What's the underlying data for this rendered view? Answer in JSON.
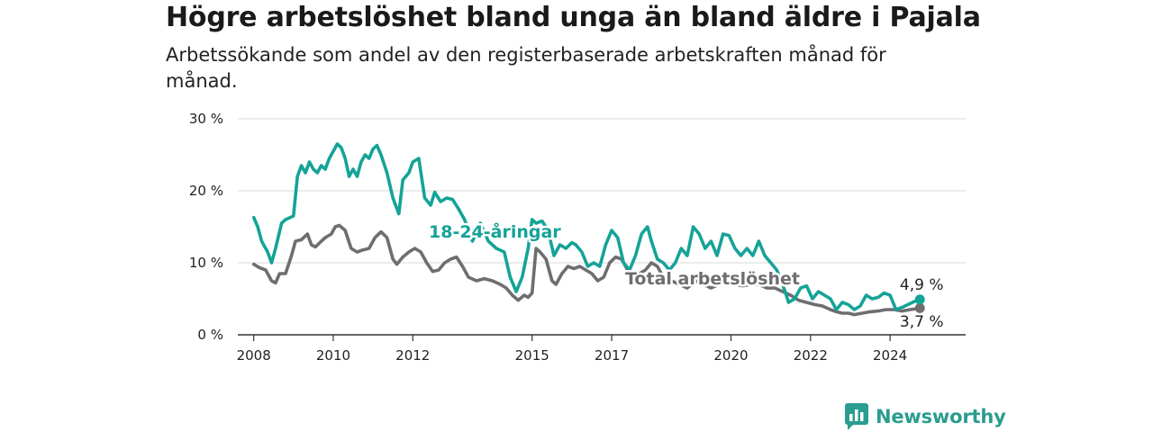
{
  "title": "Högre arbetslöshet bland unga än bland äldre i Pajala",
  "subtitle": "Arbetssökande som andel av den registerbaserade arbetskraften månad för månad.",
  "brand": {
    "name": "Newsworthy",
    "icon": "newsworthy-logo-icon",
    "color": "#2a9d8f"
  },
  "chart_data": {
    "type": "line",
    "y_ticks": [
      0,
      10,
      20,
      30
    ],
    "y_tick_labels": [
      "0 %",
      "10 %",
      "20 %",
      "30 %"
    ],
    "ylim": [
      0,
      30
    ],
    "x_ticks": [
      2008,
      2010,
      2012,
      2015,
      2017,
      2020,
      2022,
      2024
    ],
    "x_tick_labels": [
      "2008",
      "2010",
      "2012",
      "2015",
      "2017",
      "2020",
      "2022",
      "2024"
    ],
    "xlim": [
      2007.6,
      2025.9
    ],
    "grid": true,
    "series": [
      {
        "name": "18-24-åringar",
        "color": "#15a398",
        "end_label": "4,9 %",
        "x": [
          2008.0,
          2008.1,
          2008.2,
          2008.35,
          2008.45,
          2008.55,
          2008.7,
          2008.8,
          2009.0,
          2009.1,
          2009.2,
          2009.3,
          2009.4,
          2009.5,
          2009.6,
          2009.7,
          2009.8,
          2009.9,
          2010.0,
          2010.1,
          2010.2,
          2010.3,
          2010.4,
          2010.5,
          2010.6,
          2010.7,
          2010.8,
          2010.9,
          2011.0,
          2011.1,
          2011.2,
          2011.35,
          2011.5,
          2011.65,
          2011.75,
          2011.9,
          2012.0,
          2012.15,
          2012.3,
          2012.45,
          2012.55,
          2012.7,
          2012.85,
          2013.0,
          2013.15,
          2013.3,
          2013.5,
          2013.7,
          2013.9,
          2014.1,
          2014.3,
          2014.45,
          2014.6,
          2014.75,
          2014.9,
          2015.0,
          2015.1,
          2015.25,
          2015.4,
          2015.55,
          2015.7,
          2015.85,
          2016.0,
          2016.1,
          2016.25,
          2016.4,
          2016.55,
          2016.7,
          2016.85,
          2017.0,
          2017.15,
          2017.3,
          2017.45,
          2017.6,
          2017.75,
          2017.9,
          2018.0,
          2018.15,
          2018.3,
          2018.45,
          2018.6,
          2018.75,
          2018.9,
          2019.05,
          2019.2,
          2019.35,
          2019.5,
          2019.65,
          2019.8,
          2019.95,
          2020.1,
          2020.25,
          2020.4,
          2020.55,
          2020.7,
          2020.85,
          2021.0,
          2021.15,
          2021.3,
          2021.45,
          2021.6,
          2021.75,
          2021.9,
          2022.05,
          2022.2,
          2022.35,
          2022.5,
          2022.65,
          2022.8,
          2022.95,
          2023.1,
          2023.25,
          2023.4,
          2023.55,
          2023.7,
          2023.85,
          2024.0,
          2024.15,
          2024.3,
          2024.45,
          2024.6,
          2024.75
        ],
        "values": [
          16.3,
          15.0,
          13.0,
          11.5,
          10.0,
          12.0,
          15.5,
          16.0,
          16.5,
          22.0,
          23.5,
          22.5,
          24.0,
          23.0,
          22.5,
          23.5,
          23.0,
          24.5,
          25.5,
          26.5,
          26.0,
          24.5,
          22.0,
          23.0,
          22.0,
          24.0,
          25.0,
          24.5,
          25.8,
          26.3,
          25.0,
          22.5,
          19.0,
          16.8,
          21.5,
          22.5,
          24.0,
          24.5,
          19.0,
          18.0,
          19.8,
          18.5,
          19.0,
          18.8,
          17.5,
          16.0,
          13.0,
          15.5,
          13.0,
          12.0,
          11.5,
          8.0,
          6.0,
          8.0,
          12.0,
          16.0,
          15.5,
          15.8,
          14.5,
          11.0,
          12.5,
          12.0,
          12.8,
          12.5,
          11.5,
          9.5,
          10.0,
          9.5,
          12.5,
          14.5,
          13.5,
          10.0,
          9.0,
          11.0,
          14.0,
          15.0,
          13.0,
          10.5,
          10.0,
          9.0,
          10.0,
          12.0,
          11.0,
          15.0,
          14.0,
          12.0,
          13.0,
          11.0,
          14.0,
          13.8,
          12.0,
          11.0,
          12.0,
          11.0,
          13.0,
          11.0,
          10.0,
          9.0,
          7.0,
          4.5,
          5.0,
          6.5,
          6.8,
          5.0,
          6.0,
          5.5,
          5.0,
          3.5,
          4.5,
          4.2,
          3.5,
          4.0,
          5.5,
          5.0,
          5.2,
          5.8,
          5.5,
          3.5,
          3.8,
          4.2,
          4.6,
          4.9
        ]
      },
      {
        "name": "Total arbetslöshet",
        "color": "#6e6e70",
        "end_label": "3,7 %",
        "x": [
          2008.0,
          2008.15,
          2008.3,
          2008.45,
          2008.55,
          2008.65,
          2008.8,
          2008.95,
          2009.05,
          2009.2,
          2009.35,
          2009.45,
          2009.55,
          2009.7,
          2009.8,
          2009.95,
          2010.05,
          2010.15,
          2010.3,
          2010.45,
          2010.6,
          2010.75,
          2010.9,
          2011.05,
          2011.2,
          2011.35,
          2011.5,
          2011.6,
          2011.75,
          2011.9,
          2012.05,
          2012.2,
          2012.35,
          2012.5,
          2012.65,
          2012.8,
          2012.95,
          2013.1,
          2013.25,
          2013.4,
          2013.6,
          2013.8,
          2014.0,
          2014.2,
          2014.35,
          2014.5,
          2014.65,
          2014.8,
          2014.9,
          2015.0,
          2015.1,
          2015.2,
          2015.35,
          2015.5,
          2015.6,
          2015.75,
          2015.9,
          2016.05,
          2016.2,
          2016.35,
          2016.5,
          2016.65,
          2016.8,
          2016.95,
          2017.1,
          2017.25,
          2017.4,
          2017.55,
          2017.7,
          2017.85,
          2018.0,
          2018.15,
          2018.3,
          2018.5,
          2018.7,
          2018.9,
          2019.1,
          2019.3,
          2019.5,
          2019.7,
          2019.9,
          2020.1,
          2020.3,
          2020.5,
          2020.7,
          2020.9,
          2021.1,
          2021.3,
          2021.5,
          2021.7,
          2021.9,
          2022.1,
          2022.3,
          2022.5,
          2022.65,
          2022.8,
          2022.95,
          2023.1,
          2023.3,
          2023.5,
          2023.7,
          2023.9,
          2024.1,
          2024.3,
          2024.5,
          2024.75
        ],
        "values": [
          9.8,
          9.3,
          9.0,
          7.5,
          7.2,
          8.5,
          8.5,
          11.0,
          13.0,
          13.2,
          14.0,
          12.5,
          12.2,
          13.0,
          13.5,
          14.0,
          15.0,
          15.2,
          14.5,
          12.0,
          11.5,
          11.8,
          12.0,
          13.5,
          14.3,
          13.5,
          10.5,
          9.8,
          10.8,
          11.5,
          12.0,
          11.5,
          10.0,
          8.8,
          9.0,
          10.0,
          10.5,
          10.8,
          9.5,
          8.0,
          7.5,
          7.8,
          7.5,
          7.0,
          6.5,
          5.5,
          4.8,
          5.5,
          5.2,
          5.8,
          12.0,
          11.5,
          10.5,
          7.5,
          7.0,
          8.5,
          9.5,
          9.2,
          9.5,
          9.0,
          8.5,
          7.5,
          8.0,
          10.0,
          10.8,
          10.5,
          9.0,
          8.0,
          8.5,
          9.0,
          10.0,
          9.5,
          8.0,
          7.5,
          7.0,
          6.5,
          7.5,
          7.0,
          6.5,
          7.0,
          7.5,
          7.0,
          6.8,
          7.0,
          7.0,
          6.5,
          6.5,
          6.0,
          5.5,
          4.8,
          4.5,
          4.2,
          4.0,
          3.5,
          3.2,
          3.0,
          3.0,
          2.8,
          3.0,
          3.2,
          3.3,
          3.5,
          3.5,
          3.3,
          3.5,
          3.7
        ]
      }
    ]
  }
}
